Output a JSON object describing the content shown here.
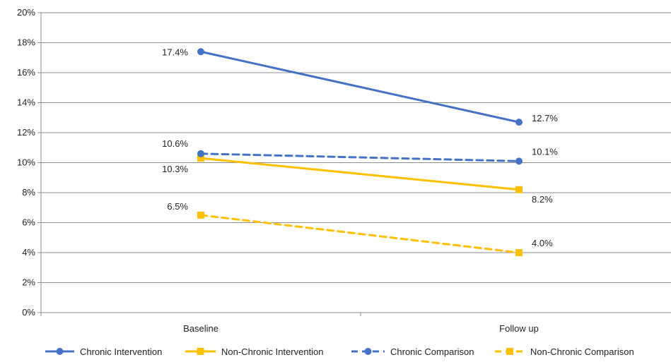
{
  "chart_data": {
    "type": "line",
    "title": "",
    "xlabel": "",
    "ylabel": "",
    "categories": [
      "Baseline",
      "Follow up"
    ],
    "ylim": [
      0,
      20
    ],
    "yticks": [
      0,
      2,
      4,
      6,
      8,
      10,
      12,
      14,
      16,
      18,
      20
    ],
    "ytick_labels": [
      "0%",
      "2%",
      "4%",
      "6%",
      "8%",
      "10%",
      "12%",
      "14%",
      "16%",
      "18%",
      "20%"
    ],
    "grid": true,
    "legend_position": "bottom",
    "series": [
      {
        "name": "Chronic Intervention",
        "values": [
          17.4,
          12.7
        ],
        "labels": [
          "17.4%",
          "12.7%"
        ],
        "color": "#4472c4",
        "line_style": "solid",
        "marker": "circle"
      },
      {
        "name": "Non-Chronic Intervention",
        "values": [
          10.3,
          8.2
        ],
        "labels": [
          "10.3%",
          "8.2%"
        ],
        "color": "#ffc000",
        "line_style": "solid",
        "marker": "square"
      },
      {
        "name": "Chronic Comparison",
        "values": [
          10.6,
          10.1
        ],
        "labels": [
          "10.6%",
          "10.1%"
        ],
        "color": "#4472c4",
        "line_style": "dashed",
        "marker": "circle"
      },
      {
        "name": "Non-Chronic Comparison",
        "values": [
          6.5,
          4.0
        ],
        "labels": [
          "6.5%",
          "4.0%"
        ],
        "color": "#ffc000",
        "line_style": "dashed",
        "marker": "square"
      }
    ]
  }
}
